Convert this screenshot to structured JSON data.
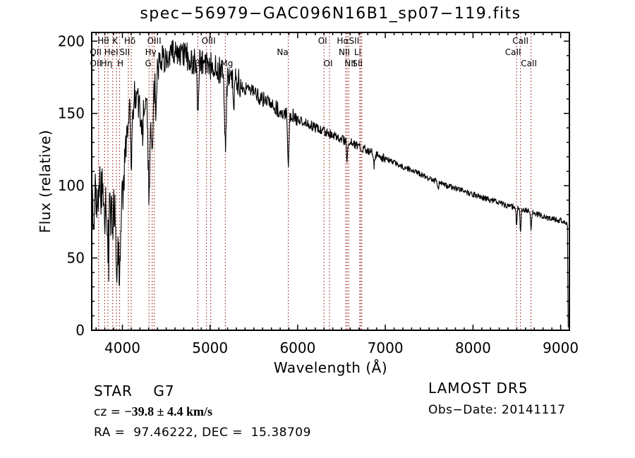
{
  "title": "spec−56979−GAC096N16B1_sp07−119.fits",
  "annotations": {
    "class_label": "STAR    G7",
    "cz_prefix": "cz = ",
    "cz_value": "−39.8 ± 4.4 km/s",
    "ra_dec": "RA =  97.46222, DEC =  15.38709",
    "survey": "LAMOST DR5",
    "obs_date": "Obs−Date: 20141117"
  },
  "chart_data": {
    "type": "line",
    "title": "spec−56979−GAC096N16B1_sp07−119.fits",
    "xlabel": "Wavelength (Å)",
    "ylabel": "Flux (relative)",
    "xlim": [
      3650,
      9100
    ],
    "ylim": [
      0,
      206
    ],
    "x_major_ticks": [
      4000,
      5000,
      6000,
      7000,
      8000,
      9000
    ],
    "x_minor_step": 100,
    "y_major_ticks": [
      0,
      50,
      100,
      150,
      200
    ],
    "y_minor_step": 10,
    "grid": false,
    "legend": "none",
    "series_color": "#000000",
    "line_marker_color": "#9e2b25",
    "spectral_lines": [
      {
        "wl": 3727,
        "label": "OII",
        "row": 2,
        "dx": -4
      },
      {
        "wl": 3729,
        "label": "OII",
        "row": 3,
        "dx": -4
      },
      {
        "wl": 3798,
        "label": "Hθ",
        "row": 1,
        "dx": -2
      },
      {
        "wl": 3835,
        "label": "Hη",
        "row": 3,
        "dx": -2
      },
      {
        "wl": 3889,
        "label": "HeI",
        "row": 2,
        "dx": -2
      },
      {
        "wl": 3933,
        "label": "K",
        "row": 1,
        "dx": -2
      },
      {
        "wl": 3968,
        "label": "H",
        "row": 3,
        "dx": 1
      },
      {
        "wl": 4068,
        "label": "SII",
        "row": 2,
        "dx": -5
      },
      {
        "wl": 4101,
        "label": "Hδ",
        "row": 1,
        "dx": -2
      },
      {
        "wl": 4304,
        "label": "G",
        "row": 3,
        "dx": -1
      },
      {
        "wl": 4340,
        "label": "Hγ",
        "row": 2,
        "dx": -2
      },
      {
        "wl": 4363,
        "label": "OIII",
        "row": 1,
        "dx": 0
      },
      {
        "wl": 4861,
        "label": "Hβ",
        "row": 3,
        "dx": -5
      },
      {
        "wl": 4959,
        "label": "OIII",
        "row": 1,
        "dx": 3
      },
      {
        "wl": 5007,
        "label": "",
        "row": 1,
        "dx": 0
      },
      {
        "wl": 5175,
        "label": "Mg",
        "row": 3,
        "dx": 2
      },
      {
        "wl": 5893,
        "label": "Na",
        "row": 2,
        "dx": -8
      },
      {
        "wl": 6300,
        "label": "OI",
        "row": 1,
        "dx": -2
      },
      {
        "wl": 6363,
        "label": "OI",
        "row": 3,
        "dx": -2
      },
      {
        "wl": 6548,
        "label": "NII",
        "row": 2,
        "dx": -2
      },
      {
        "wl": 6563,
        "label": "Hα",
        "row": 1,
        "dx": -6
      },
      {
        "wl": 6583,
        "label": "NII",
        "row": 3,
        "dx": 2
      },
      {
        "wl": 6708,
        "label": "Li",
        "row": 2,
        "dx": -3
      },
      {
        "wl": 6716,
        "label": "SII",
        "row": 1,
        "dx": -9
      },
      {
        "wl": 6731,
        "label": "SII",
        "row": 3,
        "dx": -6
      },
      {
        "wl": 8498,
        "label": "CaII",
        "row": 2,
        "dx": -5
      },
      {
        "wl": 8542,
        "label": "CaII",
        "row": 1,
        "dx": 0
      },
      {
        "wl": 8662,
        "label": "CaII",
        "row": 3,
        "dx": -3
      }
    ],
    "continuum_anchors": [
      [
        3655,
        95
      ],
      [
        3670,
        72
      ],
      [
        3685,
        100
      ],
      [
        3700,
        92
      ],
      [
        3712,
        78
      ],
      [
        3725,
        96
      ],
      [
        3740,
        104
      ],
      [
        3752,
        88
      ],
      [
        3765,
        100
      ],
      [
        3778,
        94
      ],
      [
        3790,
        102
      ],
      [
        3805,
        88
      ],
      [
        3820,
        84
      ],
      [
        3848,
        82
      ],
      [
        3862,
        94
      ],
      [
        3876,
        88
      ],
      [
        3892,
        90
      ],
      [
        3910,
        86
      ],
      [
        3926,
        78
      ],
      [
        3948,
        70
      ],
      [
        3972,
        72
      ],
      [
        3992,
        95
      ],
      [
        4010,
        112
      ],
      [
        4030,
        118
      ],
      [
        4050,
        140
      ],
      [
        4075,
        152
      ],
      [
        4100,
        148
      ],
      [
        4125,
        158
      ],
      [
        4150,
        164
      ],
      [
        4175,
        161
      ],
      [
        4200,
        152
      ],
      [
        4230,
        149
      ],
      [
        4255,
        157
      ],
      [
        4280,
        150
      ],
      [
        4305,
        140
      ],
      [
        4330,
        142
      ],
      [
        4355,
        164
      ],
      [
        4380,
        170
      ],
      [
        4405,
        178
      ],
      [
        4435,
        184
      ],
      [
        4465,
        187
      ],
      [
        4495,
        189
      ],
      [
        4525,
        191
      ],
      [
        4555,
        193
      ],
      [
        4585,
        193
      ],
      [
        4615,
        192
      ],
      [
        4645,
        191
      ],
      [
        4675,
        192
      ],
      [
        4705,
        190
      ],
      [
        4735,
        189
      ],
      [
        4765,
        188
      ],
      [
        4795,
        187
      ],
      [
        4825,
        187
      ],
      [
        4855,
        186
      ],
      [
        4885,
        185
      ],
      [
        4915,
        185
      ],
      [
        4945,
        184
      ],
      [
        4975,
        184
      ],
      [
        5005,
        183
      ],
      [
        5035,
        182
      ],
      [
        5065,
        182
      ],
      [
        5095,
        181
      ],
      [
        5125,
        180
      ],
      [
        5155,
        179
      ],
      [
        5195,
        177
      ],
      [
        5235,
        175
      ],
      [
        5275,
        173
      ],
      [
        5315,
        172
      ],
      [
        5355,
        170
      ],
      [
        5400,
        168
      ],
      [
        5450,
        166
      ],
      [
        5500,
        164
      ],
      [
        5550,
        162
      ],
      [
        5600,
        160
      ],
      [
        5650,
        158
      ],
      [
        5700,
        156
      ],
      [
        5750,
        154
      ],
      [
        5800,
        152
      ],
      [
        5850,
        151
      ],
      [
        5900,
        149
      ],
      [
        5950,
        148
      ],
      [
        6000,
        146
      ],
      [
        6050,
        145
      ],
      [
        6100,
        143
      ],
      [
        6150,
        142
      ],
      [
        6200,
        140
      ],
      [
        6250,
        139
      ],
      [
        6300,
        138
      ],
      [
        6350,
        136
      ],
      [
        6400,
        135
      ],
      [
        6450,
        134
      ],
      [
        6500,
        132
      ],
      [
        6550,
        131
      ],
      [
        6600,
        130
      ],
      [
        6650,
        128
      ],
      [
        6700,
        127
      ],
      [
        6750,
        126
      ],
      [
        6800,
        124
      ],
      [
        6850,
        123
      ],
      [
        6900,
        121
      ],
      [
        6950,
        120
      ],
      [
        7000,
        119
      ],
      [
        7100,
        116
      ],
      [
        7200,
        113
      ],
      [
        7300,
        111
      ],
      [
        7400,
        108
      ],
      [
        7500,
        105
      ],
      [
        7600,
        103
      ],
      [
        7700,
        100
      ],
      [
        7800,
        98
      ],
      [
        7900,
        96
      ],
      [
        8000,
        94
      ],
      [
        8100,
        92
      ],
      [
        8200,
        90
      ],
      [
        8300,
        88
      ],
      [
        8400,
        86
      ],
      [
        8500,
        85
      ],
      [
        8600,
        83
      ],
      [
        8700,
        81
      ],
      [
        8800,
        79
      ],
      [
        8900,
        77
      ],
      [
        9000,
        76
      ],
      [
        9078,
        74
      ]
    ],
    "absorption_features": [
      {
        "center": 3798,
        "depth": 14,
        "sigma": 6
      },
      {
        "center": 3835,
        "depth": 24,
        "sigma": 7
      },
      {
        "center": 3889,
        "depth": 14,
        "sigma": 6
      },
      {
        "center": 3933,
        "depth": 34,
        "sigma": 8
      },
      {
        "center": 3968,
        "depth": 40,
        "sigma": 8
      },
      {
        "center": 4101,
        "depth": 30,
        "sigma": 7
      },
      {
        "center": 4226,
        "depth": 18,
        "sigma": 6
      },
      {
        "center": 4304,
        "depth": 48,
        "sigma": 9
      },
      {
        "center": 4340,
        "depth": 34,
        "sigma": 7
      },
      {
        "center": 4383,
        "depth": 16,
        "sigma": 5
      },
      {
        "center": 4861,
        "depth": 38,
        "sigma": 7
      },
      {
        "center": 5175,
        "depth": 50,
        "sigma": 10
      },
      {
        "center": 5270,
        "depth": 16,
        "sigma": 7
      },
      {
        "center": 5893,
        "depth": 36,
        "sigma": 7
      },
      {
        "center": 6563,
        "depth": 15,
        "sigma": 5
      },
      {
        "center": 6870,
        "depth": 8,
        "sigma": 7
      },
      {
        "center": 7600,
        "depth": 6,
        "sigma": 7
      },
      {
        "center": 8498,
        "depth": 12,
        "sigma": 5
      },
      {
        "center": 8542,
        "depth": 15,
        "sigma": 6
      },
      {
        "center": 8662,
        "depth": 13,
        "sigma": 6
      }
    ],
    "noise_profile": [
      {
        "max_wl": 4060,
        "amp": 16
      },
      {
        "max_wl": 4460,
        "amp": 12
      },
      {
        "max_wl": 5350,
        "amp": 10
      },
      {
        "max_wl": 6000,
        "amp": 5.5
      },
      {
        "max_wl": 7000,
        "amp": 3.2
      },
      {
        "max_wl": 9100,
        "amp": 2.0
      }
    ],
    "blue_spike": {
      "max_wl": 4050,
      "prob": 0.07,
      "scale": 2.2
    },
    "end_drop": [
      [
        9078,
        72
      ],
      [
        9082,
        30
      ],
      [
        9086,
        2
      ]
    ]
  }
}
